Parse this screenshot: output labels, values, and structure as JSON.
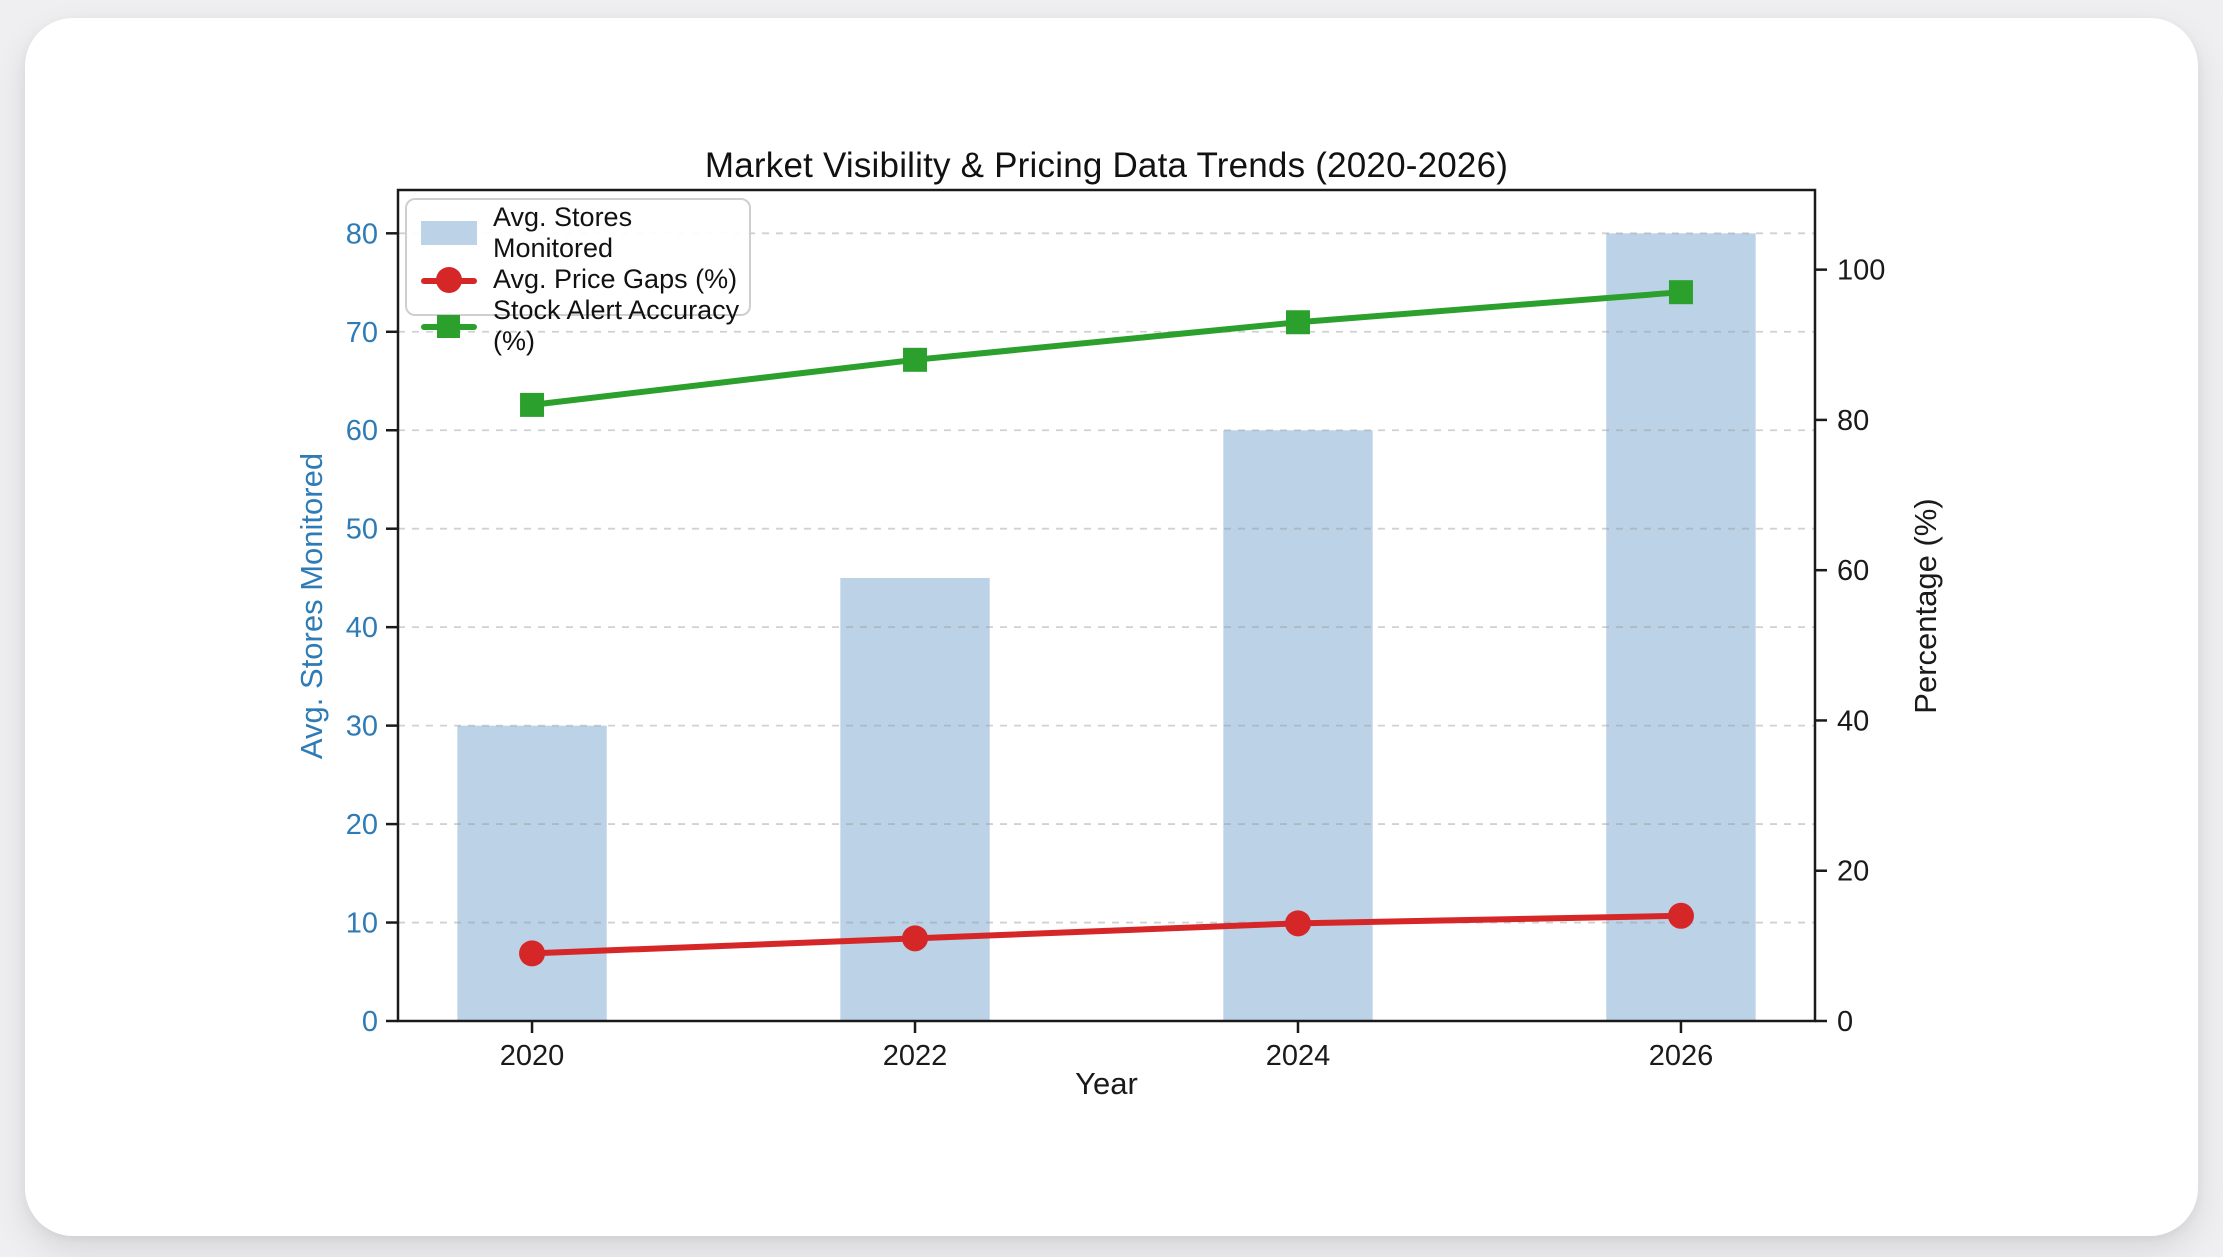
{
  "page": {
    "background_color": "#efeff1",
    "card_color": "#ffffff"
  },
  "chart_data": {
    "type": "combo",
    "title": "Market Visibility & Pricing Data Trends (2020-2026)",
    "xlabel": "Year",
    "categories": [
      2020,
      2022,
      2024,
      2026
    ],
    "x_tick_labels": [
      "2020",
      "2022",
      "2024",
      "2026"
    ],
    "xlim": [
      2019.3,
      2026.7
    ],
    "axes": {
      "left": {
        "label": "Avg. Stores Monitored",
        "color": "#2e7bb5",
        "ticks": [
          0,
          10,
          20,
          30,
          40,
          50,
          60,
          70,
          80
        ],
        "range": [
          0,
          84.4
        ],
        "grid": true
      },
      "right": {
        "label": "Percentage (%)",
        "color": "#1a1a1a",
        "ticks": [
          0,
          20,
          40,
          60,
          80,
          100
        ],
        "range": [
          0,
          110.6
        ],
        "grid": false
      }
    },
    "series": [
      {
        "name": "Avg. Stores Monitored",
        "type": "bar",
        "axis": "left",
        "color": "#bcd2e7",
        "bar_width_years": 0.78,
        "values": [
          30,
          45,
          60,
          80
        ]
      },
      {
        "name": "Avg. Price Gaps (%)",
        "type": "line",
        "axis": "right",
        "color": "#d62728",
        "marker": "circle",
        "values": [
          9,
          11,
          13,
          14
        ]
      },
      {
        "name": "Stock Alert Accuracy (%)",
        "type": "line",
        "axis": "right",
        "color": "#2ca02c",
        "marker": "square",
        "values": [
          82,
          88,
          93,
          97
        ]
      }
    ],
    "legend": {
      "position": "upper-left"
    },
    "grid_color": "#9a9a9a",
    "grid_style": "dashed"
  }
}
